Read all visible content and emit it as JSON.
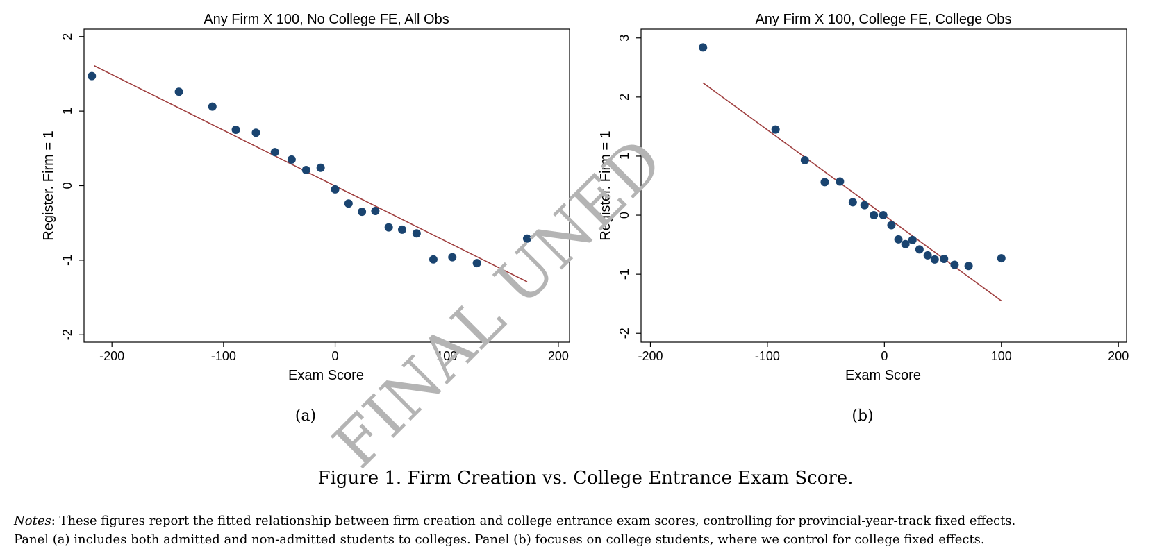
{
  "chart_data": [
    {
      "type": "scatter",
      "title": "Any Firm X 100, No College FE, All Obs",
      "xlabel": "Exam Score",
      "ylabel": "Register. Firm = 1",
      "xlim": [
        -225,
        210
      ],
      "ylim": [
        -2.1,
        2.1
      ],
      "xticks": [
        -200,
        -100,
        0,
        100,
        200
      ],
      "yticks": [
        -2,
        -1,
        0,
        1,
        2
      ],
      "grid": false,
      "legend": "none",
      "points": {
        "x": [
          -218,
          -140,
          -110,
          -89,
          -71,
          -54,
          -39,
          -26,
          -13,
          0,
          12,
          24,
          36,
          48,
          60,
          73,
          88,
          105,
          127,
          172
        ],
        "y": [
          1.47,
          1.26,
          1.06,
          0.75,
          0.71,
          0.45,
          0.35,
          0.21,
          0.24,
          -0.05,
          -0.24,
          -0.35,
          -0.34,
          -0.56,
          -0.59,
          -0.64,
          -0.99,
          -0.96,
          -1.04,
          -0.71
        ]
      },
      "fit_line": {
        "x": [
          -216,
          172
        ],
        "y": [
          1.61,
          -1.29
        ]
      },
      "colors": {
        "points": "#1a4470",
        "line": "#a04040"
      }
    },
    {
      "type": "scatter",
      "title": "Any Firm X 100, College FE, College Obs",
      "xlabel": "Exam Score",
      "ylabel": "Register. Firm = 1",
      "xlim": [
        -208,
        207
      ],
      "ylim": [
        -2.15,
        3.15
      ],
      "xticks": [
        -200,
        -100,
        0,
        100,
        200
      ],
      "yticks": [
        -2,
        -1,
        0,
        1,
        2,
        3
      ],
      "grid": false,
      "legend": "none",
      "points": {
        "x": [
          -155,
          -93,
          -68,
          -51,
          -38,
          -27,
          -17,
          -9,
          -1,
          6,
          12,
          18,
          24,
          30,
          37,
          43,
          51,
          60,
          72,
          100
        ],
        "y": [
          2.84,
          1.45,
          0.93,
          0.56,
          0.57,
          0.22,
          0.17,
          0.0,
          0.0,
          -0.17,
          -0.41,
          -0.49,
          -0.42,
          -0.58,
          -0.68,
          -0.75,
          -0.74,
          -0.84,
          -0.86,
          -0.73
        ]
      },
      "fit_line": {
        "x": [
          -155,
          100
        ],
        "y": [
          2.24,
          -1.45
        ]
      },
      "colors": {
        "points": "#1a4470",
        "line": "#a04040"
      }
    }
  ],
  "captions": [
    "(a)",
    "(b)"
  ],
  "figure_title": "Figure 1. Firm Creation vs. College Entrance Exam Score.",
  "notes": {
    "label": "Notes",
    "line1": ": These figures report the fitted relationship between firm creation and college entrance exam scores, controlling for provincial-year-track fixed effects.",
    "line2": "Panel (a) includes both admitted and non-admitted students to colleges. Panel (b) focuses on college students, where we control for college fixed effects."
  },
  "watermark": "FINAL UNED"
}
